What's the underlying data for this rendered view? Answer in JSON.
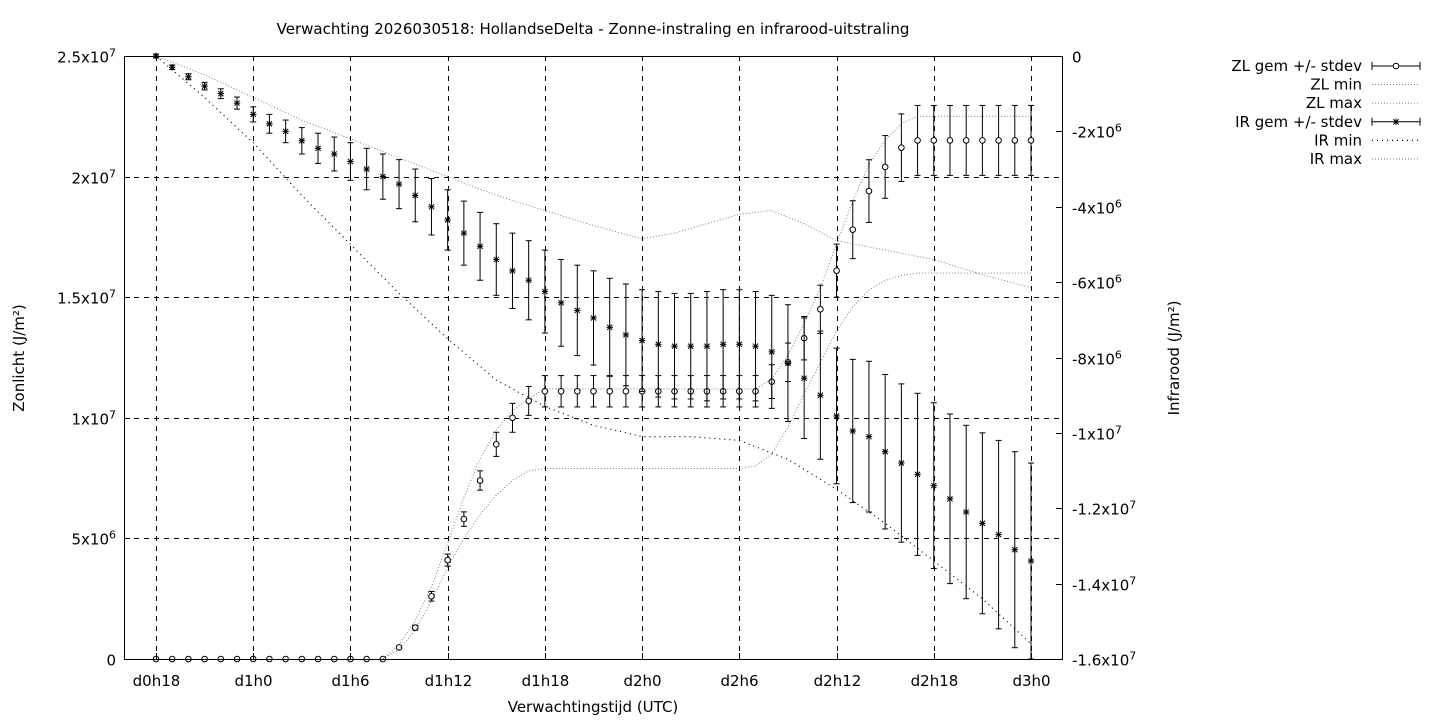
{
  "chart_data": {
    "type": "line",
    "title": "Verwachting 2026030518: HollandseDelta - Zonne-instraling en infrarood-uitstraling",
    "xlabel": "Verwachtingstijd (UTC)",
    "ylabel": "Zonlicht (J/m²)",
    "y2label": "Infrarood (J/m²)",
    "xlim": [
      18,
      72
    ],
    "ylim": [
      0,
      25000000
    ],
    "y2lim": [
      -16000000,
      0
    ],
    "grid": true,
    "x_ticks": [
      {
        "value": 18,
        "label": "d0h18"
      },
      {
        "value": 24,
        "label": "d1h0"
      },
      {
        "value": 30,
        "label": "d1h6"
      },
      {
        "value": 36,
        "label": "d1h12"
      },
      {
        "value": 42,
        "label": "d1h18"
      },
      {
        "value": 48,
        "label": "d2h0"
      },
      {
        "value": 54,
        "label": "d2h6"
      },
      {
        "value": 60,
        "label": "d2h12"
      },
      {
        "value": 66,
        "label": "d2h18"
      },
      {
        "value": 72,
        "label": "d3h0"
      }
    ],
    "y_ticks": [
      {
        "value": 0,
        "label": "0"
      },
      {
        "value": 5000000,
        "label": "5x10",
        "exp": "6"
      },
      {
        "value": 10000000,
        "label": "1x10",
        "exp": "7"
      },
      {
        "value": 15000000,
        "label": "1.5x10",
        "exp": "7"
      },
      {
        "value": 20000000,
        "label": "2x10",
        "exp": "7"
      },
      {
        "value": 25000000,
        "label": "2.5x10",
        "exp": "7"
      }
    ],
    "y2_ticks": [
      {
        "value": 0,
        "label": "0"
      },
      {
        "value": -2000000,
        "label": "-2x10",
        "exp": "6"
      },
      {
        "value": -4000000,
        "label": "-4x10",
        "exp": "6"
      },
      {
        "value": -6000000,
        "label": "-6x10",
        "exp": "6"
      },
      {
        "value": -8000000,
        "label": "-8x10",
        "exp": "6"
      },
      {
        "value": -10000000,
        "label": "-1x10",
        "exp": "7"
      },
      {
        "value": -12000000,
        "label": "-1.2x10",
        "exp": "7"
      },
      {
        "value": -14000000,
        "label": "-1.4x10",
        "exp": "7"
      },
      {
        "value": -16000000,
        "label": "-1.6x10",
        "exp": "7"
      }
    ],
    "legend_position": "top-right, outside",
    "series": [
      {
        "name": "ZL gem +/- stdev",
        "axis": "y",
        "style": "errorbar-circle",
        "x": [
          18,
          19,
          20,
          21,
          22,
          23,
          24,
          25,
          26,
          27,
          28,
          29,
          30,
          31,
          32,
          33,
          34,
          35,
          36,
          37,
          38,
          39,
          40,
          41,
          42,
          43,
          44,
          45,
          46,
          47,
          48,
          49,
          50,
          51,
          52,
          53,
          54,
          55,
          56,
          57,
          58,
          59,
          60,
          61,
          62,
          63,
          64,
          65,
          66,
          67,
          68,
          69,
          70,
          71,
          72
        ],
        "y": [
          0,
          0,
          0,
          0,
          0,
          0,
          0,
          0,
          0,
          0,
          0,
          0,
          0,
          0,
          0,
          480000,
          1300000,
          2600000,
          4100000,
          5800000,
          7400000,
          8900000,
          10000000,
          10700000,
          11100000,
          11100000,
          11100000,
          11100000,
          11100000,
          11100000,
          11100000,
          11100000,
          11100000,
          11100000,
          11100000,
          11100000,
          11100000,
          11100000,
          11500000,
          12300000,
          13300000,
          14500000,
          16100000,
          17800000,
          19400000,
          20400000,
          21200000,
          21500000,
          21500000,
          21500000,
          21500000,
          21500000,
          21500000,
          21500000,
          21500000
        ],
        "err": [
          0,
          0,
          0,
          0,
          0,
          0,
          0,
          0,
          0,
          0,
          0,
          0,
          0,
          0,
          0,
          50000,
          100000,
          200000,
          250000,
          300000,
          400000,
          500000,
          600000,
          600000,
          650000,
          650000,
          650000,
          650000,
          650000,
          650000,
          650000,
          650000,
          650000,
          650000,
          650000,
          650000,
          650000,
          650000,
          700000,
          800000,
          900000,
          1000000,
          1100000,
          1200000,
          1300000,
          1300000,
          1400000,
          1450000,
          1450000,
          1450000,
          1450000,
          1450000,
          1450000,
          1450000,
          1450000
        ]
      },
      {
        "name": "ZL min",
        "axis": "y",
        "style": "dotted-light",
        "x": [
          32,
          33,
          34,
          35,
          36,
          37,
          38,
          39,
          40,
          41,
          42,
          43,
          44,
          45,
          46,
          47,
          48,
          49,
          50,
          51,
          52,
          53,
          54,
          55,
          56,
          57,
          58,
          59,
          60,
          61,
          62,
          63,
          64,
          65,
          66,
          67,
          68,
          69,
          70,
          71,
          72
        ],
        "y": [
          0,
          400000,
          1200000,
          2400000,
          3800000,
          5000000,
          6000000,
          6800000,
          7400000,
          7800000,
          7900000,
          7900000,
          7900000,
          7900000,
          7900000,
          7900000,
          7900000,
          7900000,
          7900000,
          7900000,
          7900000,
          7900000,
          7900000,
          8000000,
          8500000,
          9600000,
          11000000,
          12300000,
          13600000,
          14600000,
          15300000,
          15700000,
          15900000,
          16000000,
          16000000,
          16000000,
          16000000,
          16000000,
          16000000,
          16000000,
          16000000
        ]
      },
      {
        "name": "ZL max",
        "axis": "y",
        "style": "dotted-light",
        "x": [
          32,
          33,
          34,
          35,
          36,
          37,
          38,
          39,
          40,
          41,
          42,
          43,
          44,
          45,
          46,
          47,
          48,
          49,
          50,
          51,
          52,
          53,
          54,
          55,
          56,
          57,
          58,
          59,
          60,
          61,
          62,
          63,
          64,
          65,
          66,
          67,
          68,
          69,
          70,
          71,
          72
        ],
        "y": [
          0,
          600000,
          1600000,
          3000000,
          4800000,
          6700000,
          8300000,
          9500000,
          10300000,
          10800000,
          11200000,
          11200000,
          11200000,
          11200000,
          11200000,
          11200000,
          11200000,
          11200000,
          11200000,
          11200000,
          11200000,
          11200000,
          11200000,
          11200000,
          11600000,
          12600000,
          13900000,
          15400000,
          17200000,
          19000000,
          20500000,
          21500000,
          22200000,
          22500000,
          22500000,
          22500000,
          22500000,
          22500000,
          22500000,
          22500000,
          22500000
        ]
      },
      {
        "name": "IR gem +/- stdev",
        "axis": "y2",
        "style": "errorbar-star",
        "x": [
          18,
          19,
          20,
          21,
          22,
          23,
          24,
          25,
          26,
          27,
          28,
          29,
          30,
          31,
          32,
          33,
          34,
          35,
          36,
          37,
          38,
          39,
          40,
          41,
          42,
          43,
          44,
          45,
          46,
          47,
          48,
          49,
          50,
          51,
          52,
          53,
          54,
          55,
          56,
          57,
          58,
          59,
          60,
          61,
          62,
          63,
          64,
          65,
          66,
          67,
          68,
          69,
          70,
          71,
          72
        ],
        "y": [
          0,
          -300000,
          -550000,
          -800000,
          -1000000,
          -1250000,
          -1550000,
          -1800000,
          -2000000,
          -2250000,
          -2450000,
          -2600000,
          -2800000,
          -3000000,
          -3200000,
          -3400000,
          -3700000,
          -4000000,
          -4350000,
          -4700000,
          -5050000,
          -5400000,
          -5700000,
          -5950000,
          -6250000,
          -6550000,
          -6750000,
          -6950000,
          -7200000,
          -7400000,
          -7550000,
          -7650000,
          -7700000,
          -7700000,
          -7700000,
          -7650000,
          -7650000,
          -7700000,
          -7850000,
          -8150000,
          -8550000,
          -9000000,
          -9550000,
          -9950000,
          -10100000,
          -10500000,
          -10800000,
          -11100000,
          -11400000,
          -11750000,
          -12100000,
          -12400000,
          -12700000,
          -13100000,
          -13400000
        ],
        "err": [
          50000,
          60000,
          80000,
          100000,
          130000,
          160000,
          200000,
          250000,
          300000,
          350000,
          400000,
          450000,
          500000,
          550000,
          600000,
          650000,
          700000,
          750000,
          800000,
          850000,
          900000,
          950000,
          1000000,
          1050000,
          1100000,
          1150000,
          1200000,
          1250000,
          1300000,
          1350000,
          1350000,
          1400000,
          1400000,
          1400000,
          1450000,
          1450000,
          1450000,
          1450000,
          1500000,
          1550000,
          1600000,
          1700000,
          1800000,
          1900000,
          2000000,
          2050000,
          2100000,
          2150000,
          2200000,
          2250000,
          2300000,
          2400000,
          2500000,
          2600000,
          2600000
        ]
      },
      {
        "name": "IR min",
        "axis": "y2",
        "style": "dotted-dark",
        "x": [
          18,
          21,
          24,
          27,
          30,
          33,
          36,
          39,
          42,
          45,
          48,
          51,
          54,
          57,
          60,
          63,
          66,
          69,
          72
        ],
        "y": [
          0,
          -1100000,
          -2300000,
          -3700000,
          -5000000,
          -6300000,
          -7500000,
          -8600000,
          -9300000,
          -9800000,
          -10100000,
          -10100000,
          -10200000,
          -10700000,
          -11500000,
          -12400000,
          -13400000,
          -14400000,
          -15600000
        ]
      },
      {
        "name": "IR max",
        "axis": "y2",
        "style": "dotted-light",
        "x": [
          18,
          21,
          24,
          27,
          30,
          33,
          36,
          39,
          42,
          45,
          48,
          50,
          52,
          54,
          56,
          58,
          60,
          63,
          66,
          69,
          72
        ],
        "y": [
          0,
          -500000,
          -1100000,
          -1700000,
          -2200000,
          -2700000,
          -3200000,
          -3700000,
          -4100000,
          -4500000,
          -4850000,
          -4700000,
          -4450000,
          -4200000,
          -4100000,
          -4450000,
          -4900000,
          -5150000,
          -5400000,
          -5800000,
          -6150000
        ]
      }
    ]
  }
}
